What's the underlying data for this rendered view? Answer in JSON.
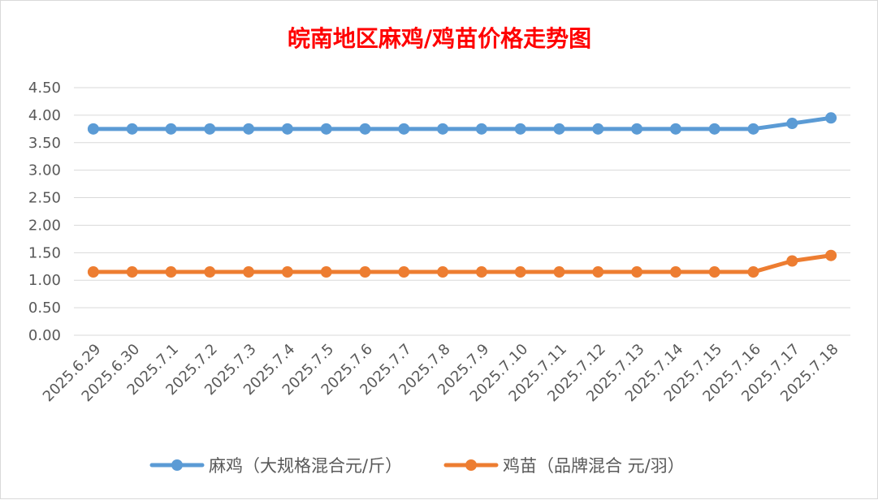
{
  "chart_data": {
    "type": "line",
    "title": "皖南地区麻鸡/鸡苗价格走势图",
    "title_color": "#ff0000",
    "categories": [
      "2025.6.29",
      "2025.6.30",
      "2025.7.1",
      "2025.7.2",
      "2025.7.3",
      "2025.7.4",
      "2025.7.5",
      "2025.7.6",
      "2025.7.7",
      "2025.7.8",
      "2025.7.9",
      "2025.7.10",
      "2025.7.11",
      "2025.7.12",
      "2025.7.13",
      "2025.7.14",
      "2025.7.15",
      "2025.7.16",
      "2025.7.17",
      "2025.7.18"
    ],
    "series": [
      {
        "name": "麻鸡（大规格混合元/斤）",
        "color": "#5b9bd5",
        "values": [
          3.75,
          3.75,
          3.75,
          3.75,
          3.75,
          3.75,
          3.75,
          3.75,
          3.75,
          3.75,
          3.75,
          3.75,
          3.75,
          3.75,
          3.75,
          3.75,
          3.75,
          3.75,
          3.85,
          3.95
        ]
      },
      {
        "name": "鸡苗（品牌混合 元/羽）",
        "color": "#ed7d31",
        "values": [
          1.15,
          1.15,
          1.15,
          1.15,
          1.15,
          1.15,
          1.15,
          1.15,
          1.15,
          1.15,
          1.15,
          1.15,
          1.15,
          1.15,
          1.15,
          1.15,
          1.15,
          1.15,
          1.35,
          1.45
        ]
      }
    ],
    "y_ticks": [
      "0.00",
      "0.50",
      "1.00",
      "1.50",
      "2.00",
      "2.50",
      "3.00",
      "3.50",
      "4.00",
      "4.50"
    ],
    "ylim": [
      0,
      4.5
    ],
    "grid": true,
    "legend_position": "bottom"
  }
}
